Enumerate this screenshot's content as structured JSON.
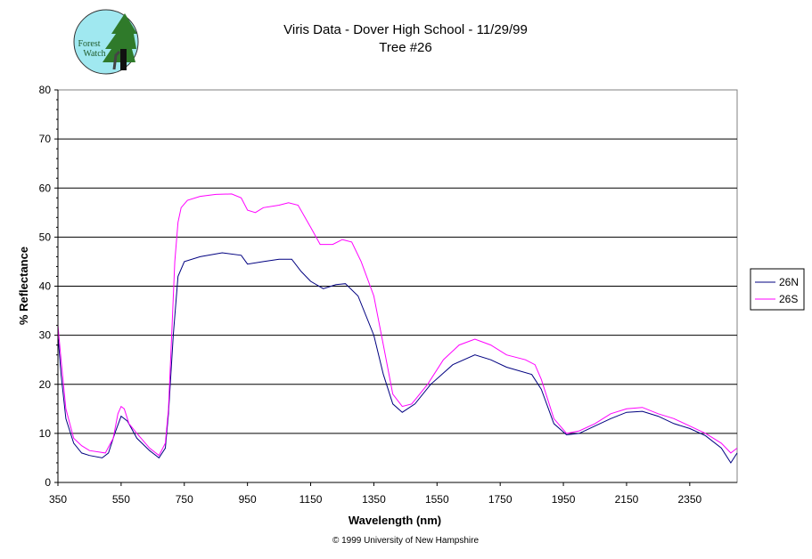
{
  "logo": {
    "text_line1": "Forest",
    "text_line2": "Watch"
  },
  "chart_data": {
    "type": "line",
    "title": "Viris Data - Dover High School - 11/29/99",
    "subtitle": "Tree #26",
    "xlabel": "Wavelength (nm)",
    "ylabel": "% Reflectance",
    "xlim": [
      350,
      2500
    ],
    "ylim": [
      0,
      80
    ],
    "xticks": [
      350,
      550,
      750,
      950,
      1150,
      1350,
      1550,
      1750,
      1950,
      2150,
      2350
    ],
    "yticks": [
      0,
      10,
      20,
      30,
      40,
      50,
      60,
      70,
      80
    ],
    "grid": "horizontal",
    "legend_placement": "right",
    "footer": "© 1999 University of New Hampshire",
    "series": [
      {
        "name": "26N",
        "color": "#000080",
        "x": [
          350,
          360,
          375,
          400,
          425,
          450,
          490,
          510,
          530,
          550,
          570,
          600,
          640,
          670,
          690,
          700,
          715,
          730,
          750,
          800,
          870,
          930,
          950,
          1000,
          1050,
          1090,
          1120,
          1150,
          1190,
          1230,
          1260,
          1300,
          1350,
          1380,
          1410,
          1440,
          1480,
          1530,
          1600,
          1670,
          1720,
          1770,
          1850,
          1880,
          1920,
          1960,
          2000,
          2050,
          2100,
          2150,
          2200,
          2250,
          2300,
          2350,
          2400,
          2450,
          2480,
          2500
        ],
        "y": [
          30,
          22,
          13,
          8,
          6,
          5.5,
          5,
          6,
          10,
          13.5,
          12.5,
          9,
          6.5,
          5,
          7,
          14,
          30,
          42,
          45,
          46,
          46.8,
          46.3,
          44.5,
          45,
          45.5,
          45.5,
          43,
          41,
          39.5,
          40.3,
          40.5,
          38,
          30,
          22,
          16,
          14.3,
          16,
          20,
          24,
          26,
          25,
          23.5,
          22,
          19,
          12,
          9.7,
          10,
          11.5,
          13,
          14.3,
          14.5,
          13.5,
          12,
          11,
          9.5,
          7,
          4,
          6
        ]
      },
      {
        "name": "26S",
        "color": "#ff00ff",
        "x": [
          350,
          360,
          375,
          400,
          425,
          450,
          500,
          525,
          540,
          550,
          560,
          575,
          600,
          640,
          670,
          690,
          700,
          710,
          720,
          730,
          740,
          760,
          800,
          850,
          900,
          930,
          950,
          975,
          1000,
          1050,
          1080,
          1110,
          1150,
          1180,
          1220,
          1250,
          1280,
          1310,
          1350,
          1380,
          1410,
          1440,
          1470,
          1520,
          1570,
          1620,
          1670,
          1720,
          1770,
          1830,
          1860,
          1880,
          1920,
          1960,
          2000,
          2050,
          2100,
          2150,
          2200,
          2250,
          2300,
          2350,
          2400,
          2450,
          2480,
          2500
        ],
        "y": [
          32,
          25,
          15,
          9,
          7.5,
          6.5,
          6,
          9,
          14,
          15.5,
          15,
          12,
          10,
          7,
          5.5,
          8,
          15,
          30,
          45,
          53,
          56,
          57.5,
          58.3,
          58.7,
          58.8,
          58,
          55.5,
          55,
          56,
          56.5,
          57,
          56.5,
          52,
          48.5,
          48.5,
          49.5,
          49,
          45,
          38,
          28,
          18,
          15.5,
          16,
          20,
          25,
          28,
          29.2,
          28,
          26,
          25,
          24,
          21,
          13,
          10,
          10.5,
          12,
          14,
          15,
          15.3,
          14,
          13,
          11.5,
          10,
          8,
          6,
          7
        ]
      }
    ]
  }
}
